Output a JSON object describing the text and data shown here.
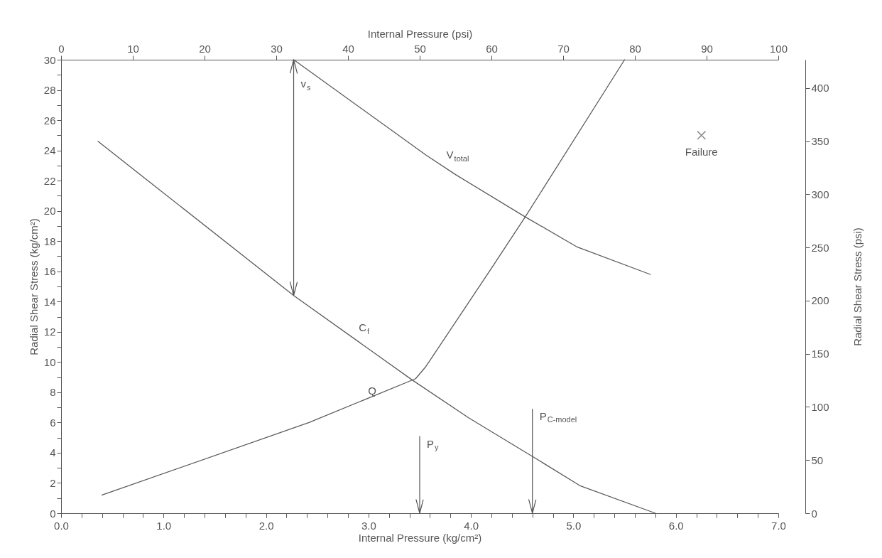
{
  "chart_data": {
    "type": "line",
    "xlabel": "Internal Pressure   (kg/cm²)",
    "ylabel": "Radial Shear Stress   (kg/cm²)",
    "y2label": "Radial Shear Stress   (psi)",
    "x2label": "Internal Pressure   (psi)",
    "xlim": [
      0,
      7
    ],
    "ylim": [
      0,
      30
    ],
    "x2lim": [
      0,
      100
    ],
    "y2lim": [
      0,
      426.7
    ],
    "xticks": [
      {
        "value": 0,
        "label": "0.0"
      },
      {
        "value": 0.2,
        "label": null
      },
      {
        "value": 0.4,
        "label": null
      },
      {
        "value": 0.6,
        "label": null
      },
      {
        "value": 0.8,
        "label": null
      },
      {
        "value": 1,
        "label": "1.0"
      },
      {
        "value": 1.2,
        "label": null
      },
      {
        "value": 1.4,
        "label": null
      },
      {
        "value": 1.6,
        "label": null
      },
      {
        "value": 1.8,
        "label": null
      },
      {
        "value": 2,
        "label": "2.0"
      },
      {
        "value": 2.2,
        "label": null
      },
      {
        "value": 2.4,
        "label": null
      },
      {
        "value": 2.6,
        "label": null
      },
      {
        "value": 2.8,
        "label": null
      },
      {
        "value": 3,
        "label": "3.0"
      },
      {
        "value": 3.2,
        "label": null
      },
      {
        "value": 3.4,
        "label": null
      },
      {
        "value": 3.6,
        "label": null
      },
      {
        "value": 3.8,
        "label": null
      },
      {
        "value": 4,
        "label": "4.0"
      },
      {
        "value": 4.2,
        "label": null
      },
      {
        "value": 4.4,
        "label": null
      },
      {
        "value": 4.6,
        "label": null
      },
      {
        "value": 4.8,
        "label": null
      },
      {
        "value": 5,
        "label": "5.0"
      },
      {
        "value": 5.2,
        "label": null
      },
      {
        "value": 5.4,
        "label": null
      },
      {
        "value": 5.6,
        "label": null
      },
      {
        "value": 5.8,
        "label": null
      },
      {
        "value": 6,
        "label": "6.0"
      },
      {
        "value": 6.2,
        "label": null
      },
      {
        "value": 6.4,
        "label": null
      },
      {
        "value": 6.6,
        "label": null
      },
      {
        "value": 6.8,
        "label": null
      },
      {
        "value": 7,
        "label": "7.0"
      }
    ],
    "yticks": [
      0,
      {
        "value": 1,
        "label": null
      },
      2,
      {
        "value": 3,
        "label": null
      },
      4,
      {
        "value": 5,
        "label": null
      },
      6,
      {
        "value": 7,
        "label": null
      },
      8,
      {
        "value": 9,
        "label": null
      },
      10,
      {
        "value": 11,
        "label": null
      },
      12,
      {
        "value": 13,
        "label": null
      },
      14,
      {
        "value": 15,
        "label": null
      },
      16,
      {
        "value": 17,
        "label": null
      },
      18,
      {
        "value": 19,
        "label": null
      },
      20,
      {
        "value": 21,
        "label": null
      },
      22,
      {
        "value": 23,
        "label": null
      },
      24,
      {
        "value": 25,
        "label": null
      },
      26,
      {
        "value": 27,
        "label": null
      },
      28,
      {
        "value": 29,
        "label": null
      },
      30
    ],
    "x2ticks": [
      0,
      10,
      20,
      30,
      40,
      50,
      60,
      70,
      80,
      90,
      100
    ],
    "y2ticks": [
      0,
      50,
      100,
      150,
      200,
      250,
      300,
      350,
      400
    ],
    "line_style": "solid",
    "series": [
      {
        "name": "V$_{total}$",
        "color": "#5a5a5a",
        "x": [
          2.27,
          3.56,
          3.85,
          4.53,
          5.04,
          5.75
        ],
        "values": [
          30,
          23.7,
          22.4,
          19.6,
          17.6,
          15.8
        ]
      },
      {
        "name": "C$_{f}$",
        "color": "#5a5a5a",
        "x": [
          0.36,
          2.27,
          3.43,
          3.98,
          4.59,
          5.07,
          5.8
        ],
        "values": [
          24.6,
          14.4,
          8.8,
          6.3,
          3.8,
          1.8,
          0
        ]
      },
      {
        "name": "Q",
        "color": "#5a5a5a",
        "x": [
          0.4,
          2.42,
          3.46,
          3.56,
          4.19,
          4.53,
          5.5
        ],
        "values": [
          1.2,
          6.0,
          8.9,
          9.7,
          16.1,
          19.6,
          30
        ]
      },
      {
        "name": "Failure",
        "type": "scatter",
        "marker": "cross",
        "color": "#5a5a5a",
        "x": [
          6.25
        ],
        "values": [
          25
        ]
      }
    ],
    "ref_lines": [
      {
        "axis": "x",
        "value": 3.5,
        "label": "P$_{y}$"
      },
      {
        "axis": "x",
        "value": 4.6,
        "label": "P$_{C-model}$"
      }
    ],
    "annotations": [
      {
        "text": "v$_{s}$",
        "x": 2.27,
        "y": 30
      }
    ]
  }
}
